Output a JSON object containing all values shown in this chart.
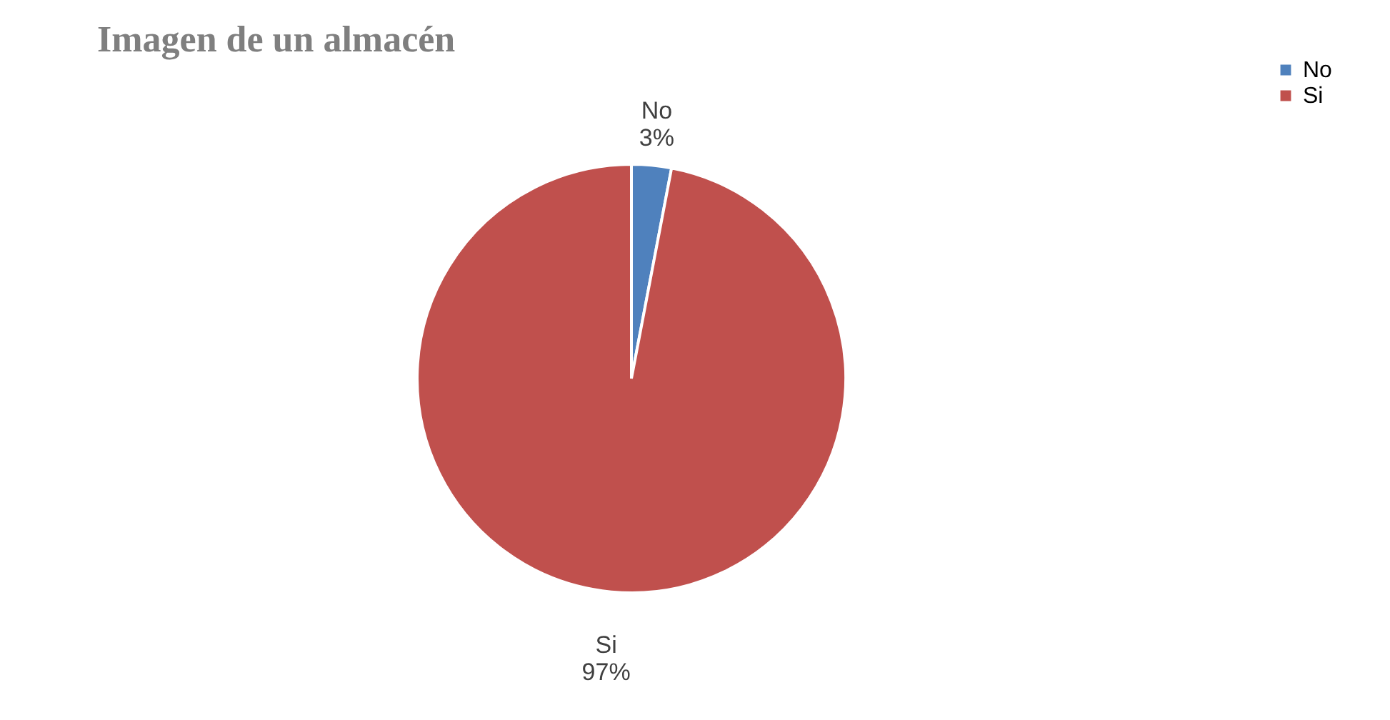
{
  "chart_data": {
    "type": "pie",
    "title": "Imagen de un almacén",
    "categories": [
      "No",
      "Si"
    ],
    "values": [
      3,
      97
    ],
    "colors": [
      "#4f81bd",
      "#c0504d"
    ],
    "value_labels": [
      "3%",
      "97%"
    ],
    "legend": "right"
  }
}
